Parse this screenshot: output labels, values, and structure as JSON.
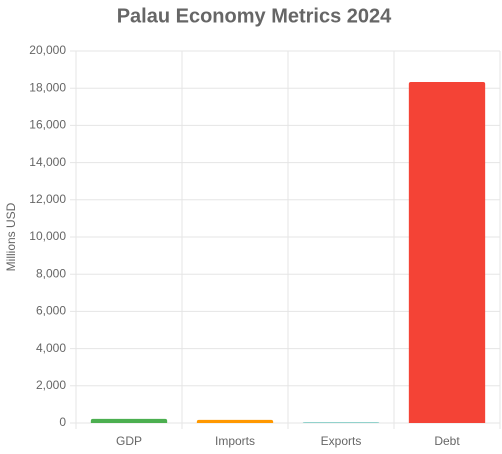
{
  "chart_data": {
    "type": "bar",
    "title": "Palau Economy Metrics 2024",
    "y_label": "Millions USD",
    "categories": [
      "GDP",
      "Imports",
      "Exports",
      "Debt"
    ],
    "values": [
      220,
      170,
      25,
      18330
    ],
    "colors": [
      "#4caf50",
      "#ff9800",
      "#26a69a",
      "#f44336"
    ],
    "ylim": [
      0,
      20000
    ],
    "yticks": [
      0,
      {
        "value": 2000,
        "label": "2,000"
      },
      {
        "value": 4000,
        "label": "4,000"
      },
      {
        "value": 6000,
        "label": "6,000"
      },
      {
        "value": 8000,
        "label": "8,000"
      },
      {
        "value": 10000,
        "label": "10,000"
      },
      {
        "value": 12000,
        "label": "12,000"
      },
      {
        "value": 14000,
        "label": "14,000"
      },
      {
        "value": 16000,
        "label": "16,000"
      },
      {
        "value": 18000,
        "label": "18,000"
      },
      {
        "value": 20000,
        "label": "20,000"
      }
    ],
    "grid": true
  }
}
